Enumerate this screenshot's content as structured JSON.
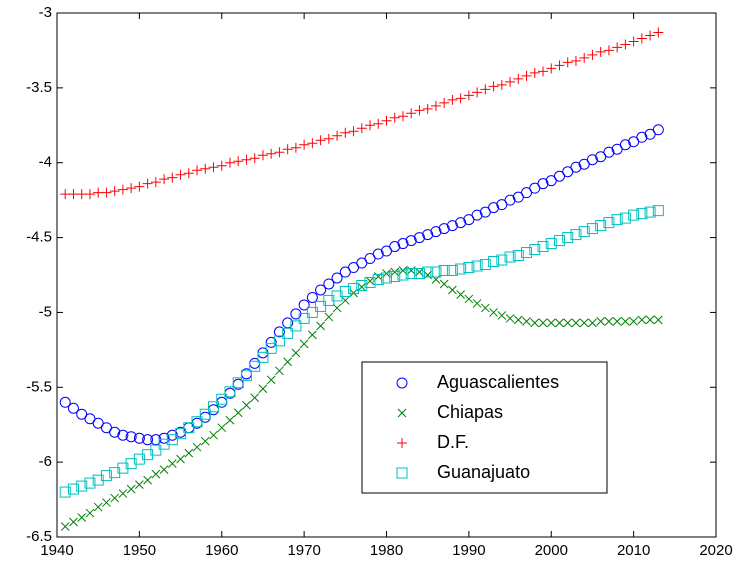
{
  "chart_data": {
    "type": "scatter",
    "xlim": [
      1940,
      2020
    ],
    "xticks": [
      1940,
      1950,
      1960,
      1970,
      1980,
      1990,
      2000,
      2010,
      2020
    ],
    "ylim": [
      -6.5,
      -3
    ],
    "yticks": [
      -6.5,
      -6,
      -5.5,
      -5,
      -4.5,
      -4,
      -3.5,
      -3
    ],
    "grid": false,
    "legend": "lower-right",
    "x": [
      1941,
      1942,
      1943,
      1944,
      1945,
      1946,
      1947,
      1948,
      1949,
      1950,
      1951,
      1952,
      1953,
      1954,
      1955,
      1956,
      1957,
      1958,
      1959,
      1960,
      1961,
      1962,
      1963,
      1964,
      1965,
      1966,
      1967,
      1968,
      1969,
      1970,
      1971,
      1972,
      1973,
      1974,
      1975,
      1976,
      1977,
      1978,
      1979,
      1980,
      1981,
      1982,
      1983,
      1984,
      1985,
      1986,
      1987,
      1988,
      1989,
      1990,
      1991,
      1992,
      1993,
      1994,
      1995,
      1996,
      1997,
      1998,
      1999,
      2000,
      2001,
      2002,
      2003,
      2004,
      2005,
      2006,
      2007,
      2008,
      2009,
      2010,
      2011,
      2012,
      2013
    ],
    "series": [
      {
        "name": "Aguascalientes",
        "color": "#0000ff",
        "marker": "o",
        "values": [
          -5.6,
          -5.64,
          -5.68,
          -5.71,
          -5.74,
          -5.77,
          -5.8,
          -5.82,
          -5.83,
          -5.84,
          -5.85,
          -5.85,
          -5.84,
          -5.82,
          -5.8,
          -5.77,
          -5.74,
          -5.7,
          -5.65,
          -5.6,
          -5.54,
          -5.48,
          -5.41,
          -5.34,
          -5.27,
          -5.2,
          -5.13,
          -5.07,
          -5.01,
          -4.95,
          -4.9,
          -4.85,
          -4.81,
          -4.77,
          -4.73,
          -4.7,
          -4.67,
          -4.64,
          -4.61,
          -4.59,
          -4.56,
          -4.54,
          -4.52,
          -4.5,
          -4.48,
          -4.46,
          -4.44,
          -4.42,
          -4.4,
          -4.38,
          -4.35,
          -4.33,
          -4.3,
          -4.28,
          -4.25,
          -4.23,
          -4.2,
          -4.17,
          -4.14,
          -4.12,
          -4.09,
          -4.06,
          -4.03,
          -4.01,
          -3.98,
          -3.96,
          -3.93,
          -3.91,
          -3.88,
          -3.86,
          -3.83,
          -3.81,
          -3.78
        ]
      },
      {
        "name": "Chiapas",
        "color": "#008000",
        "marker": "x",
        "values": [
          -6.43,
          -6.4,
          -6.37,
          -6.34,
          -6.3,
          -6.27,
          -6.24,
          -6.21,
          -6.18,
          -6.15,
          -6.12,
          -6.08,
          -6.05,
          -6.01,
          -5.98,
          -5.94,
          -5.9,
          -5.86,
          -5.82,
          -5.77,
          -5.72,
          -5.67,
          -5.62,
          -5.57,
          -5.51,
          -5.45,
          -5.39,
          -5.33,
          -5.27,
          -5.21,
          -5.15,
          -5.09,
          -5.03,
          -4.97,
          -4.92,
          -4.87,
          -4.83,
          -4.79,
          -4.76,
          -4.74,
          -4.73,
          -4.72,
          -4.72,
          -4.73,
          -4.75,
          -4.78,
          -4.81,
          -4.85,
          -4.88,
          -4.91,
          -4.94,
          -4.97,
          -5.0,
          -5.02,
          -5.04,
          -5.05,
          -5.06,
          -5.07,
          -5.07,
          -5.07,
          -5.07,
          -5.07,
          -5.07,
          -5.07,
          -5.07,
          -5.06,
          -5.06,
          -5.06,
          -5.06,
          -5.06,
          -5.05,
          -5.05,
          -5.05
        ]
      },
      {
        "name": "D.F.",
        "color": "#ff0000",
        "marker": "+",
        "values": [
          -4.21,
          -4.21,
          -4.21,
          -4.21,
          -4.2,
          -4.2,
          -4.19,
          -4.18,
          -4.17,
          -4.16,
          -4.14,
          -4.13,
          -4.11,
          -4.1,
          -4.08,
          -4.07,
          -4.05,
          -4.04,
          -4.03,
          -4.02,
          -4.0,
          -3.99,
          -3.98,
          -3.97,
          -3.95,
          -3.94,
          -3.93,
          -3.91,
          -3.9,
          -3.88,
          -3.87,
          -3.85,
          -3.84,
          -3.82,
          -3.8,
          -3.79,
          -3.77,
          -3.75,
          -3.74,
          -3.72,
          -3.7,
          -3.69,
          -3.67,
          -3.65,
          -3.64,
          -3.62,
          -3.6,
          -3.58,
          -3.57,
          -3.55,
          -3.53,
          -3.51,
          -3.49,
          -3.48,
          -3.46,
          -3.44,
          -3.42,
          -3.4,
          -3.39,
          -3.37,
          -3.35,
          -3.33,
          -3.32,
          -3.3,
          -3.28,
          -3.26,
          -3.25,
          -3.23,
          -3.21,
          -3.19,
          -3.17,
          -3.15,
          -3.13
        ]
      },
      {
        "name": "Guanajuato",
        "color": "#00bfbf",
        "marker": "s",
        "values": [
          -6.2,
          -6.18,
          -6.16,
          -6.14,
          -6.12,
          -6.09,
          -6.07,
          -6.04,
          -6.01,
          -5.98,
          -5.95,
          -5.92,
          -5.88,
          -5.85,
          -5.81,
          -5.77,
          -5.73,
          -5.68,
          -5.63,
          -5.58,
          -5.53,
          -5.47,
          -5.42,
          -5.36,
          -5.3,
          -5.24,
          -5.19,
          -5.14,
          -5.09,
          -5.04,
          -5.0,
          -4.96,
          -4.92,
          -4.89,
          -4.86,
          -4.84,
          -4.82,
          -4.8,
          -4.78,
          -4.77,
          -4.76,
          -4.75,
          -4.74,
          -4.74,
          -4.73,
          -4.73,
          -4.72,
          -4.72,
          -4.71,
          -4.7,
          -4.69,
          -4.68,
          -4.66,
          -4.65,
          -4.63,
          -4.62,
          -4.6,
          -4.58,
          -4.56,
          -4.54,
          -4.52,
          -4.5,
          -4.48,
          -4.46,
          -4.44,
          -4.42,
          -4.4,
          -4.38,
          -4.37,
          -4.35,
          -4.34,
          -4.33,
          -4.32
        ]
      }
    ]
  }
}
